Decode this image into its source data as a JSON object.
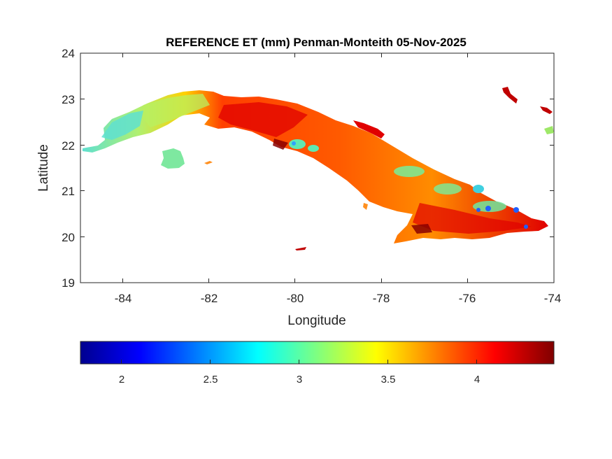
{
  "title": "REFERENCE ET (mm) Penman-Monteith 05-Nov-2025",
  "xlabel": "Longitude",
  "ylabel": "Latitude",
  "x_ticks": [
    "-84",
    "-82",
    "-80",
    "-78",
    "-76",
    "-74"
  ],
  "y_ticks": [
    "24",
    "23",
    "22",
    "21",
    "20",
    "19"
  ],
  "colorbar": {
    "range": [
      1.78,
      4.45
    ],
    "ticks": [
      "2",
      "2.5",
      "3",
      "3.5",
      "4"
    ],
    "colormap": "jet",
    "colors": [
      "#00008f",
      "#0000ff",
      "#00ffff",
      "#ffff00",
      "#ff0000",
      "#800000"
    ]
  },
  "map": {
    "lon_range": [
      -85,
      -74
    ],
    "lat_range": [
      19,
      24
    ],
    "ocean_color": "#ffffff",
    "region_colors": {
      "west_cool": "#5fe0d0",
      "west_mid": "#b8f060",
      "central": "#ff6a00",
      "hot": "#e00000",
      "very_hot": "#8a0000",
      "cool_spot": "#60e8b0",
      "cold_spot": "#2060ff"
    }
  }
}
